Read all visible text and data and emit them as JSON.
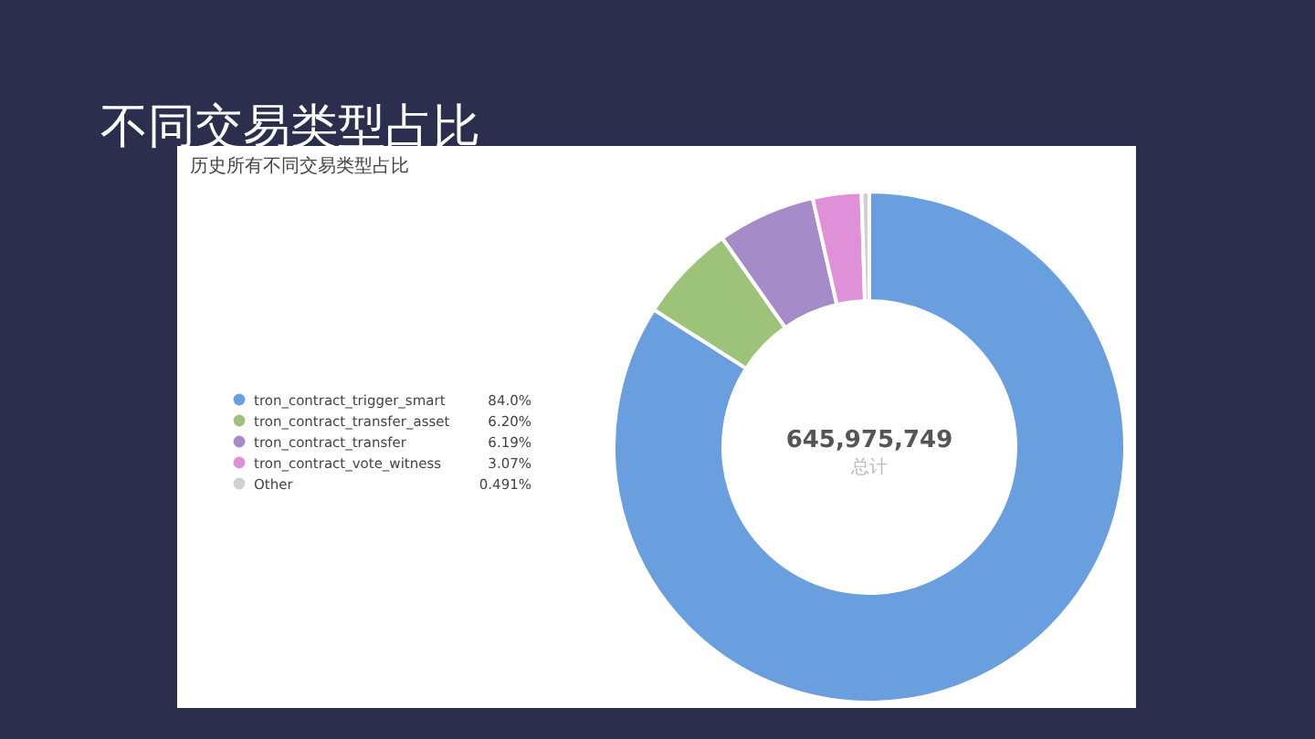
{
  "chart_data": {
    "type": "donut",
    "title": "不同交易类型占比",
    "subtitle": "历史所有不同交易类型占比",
    "categories": [
      "tron_contract_trigger_smart",
      "tron_contract_transfer_asset",
      "tron_contract_transfer",
      "tron_contract_vote_witness",
      "Other"
    ],
    "values": [
      84.0,
      6.2,
      6.19,
      3.07,
      0.491
    ],
    "value_labels": [
      "84.0%",
      "6.20%",
      "6.19%",
      "3.07%",
      "0.491%"
    ],
    "colors": [
      "#6a9fdf",
      "#9dc27a",
      "#a68bc9",
      "#e08fd9",
      "#d0d0d0"
    ],
    "legend": "left",
    "annotations": [
      "645,975,749",
      "总计"
    ]
  }
}
